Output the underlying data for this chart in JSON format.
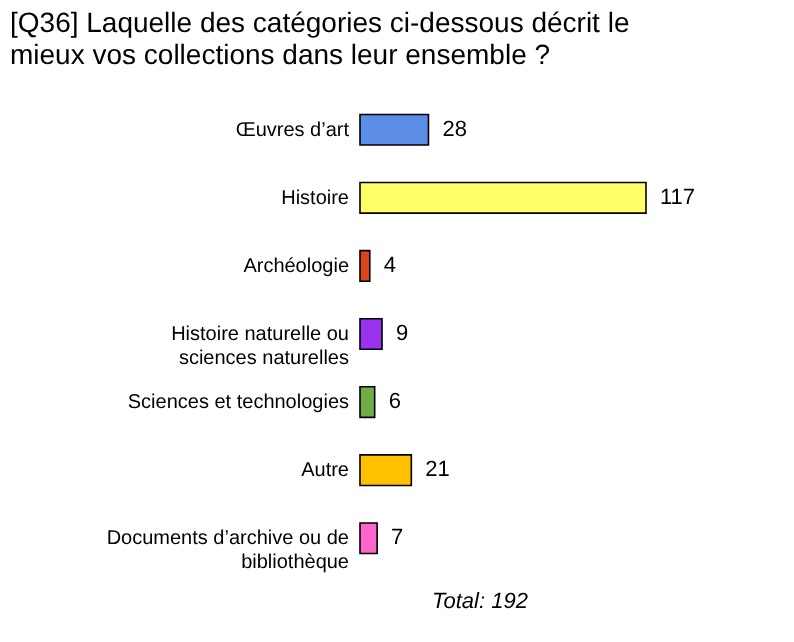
{
  "chart_data": {
    "type": "bar",
    "orientation": "horizontal",
    "title": "[Q36] Laquelle des catégories ci-dessous décrit le mieux vos collections dans leur ensemble ?",
    "categories": [
      "Œuvres d’art",
      "Histoire",
      "Archéologie",
      "Histoire naturelle ou sciences naturelles",
      "Sciences et technologies",
      "Autre",
      "Documents d’archive ou de bibliothèque"
    ],
    "values": [
      28,
      117,
      4,
      9,
      6,
      21,
      7
    ],
    "colors": [
      "#5b8ee6",
      "#ffff66",
      "#d9441c",
      "#9933ee",
      "#70ad47",
      "#ffc000",
      "#ff66cc"
    ],
    "tick_labels": "y",
    "data_labels": true,
    "annotations": [
      "Total: 192"
    ]
  }
}
